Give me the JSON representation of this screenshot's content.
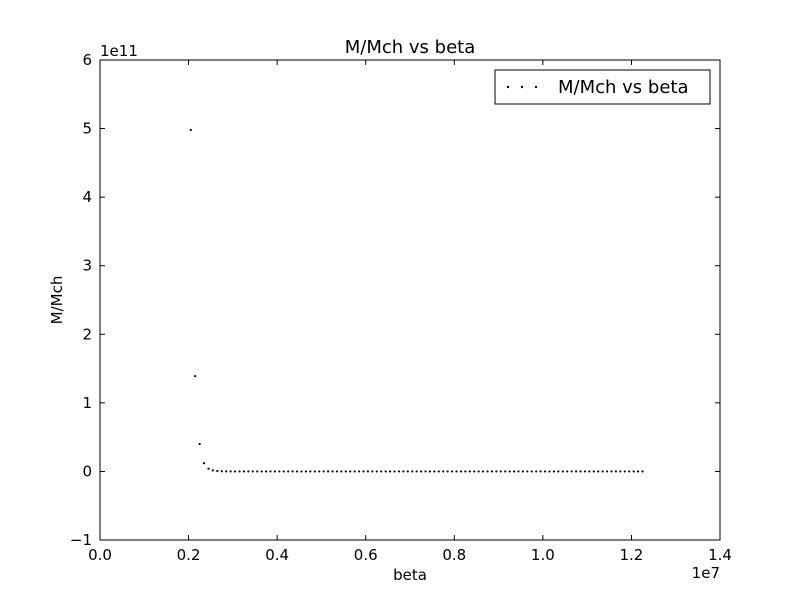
{
  "chart_data": {
    "type": "scatter",
    "title": "M/Mch vs beta",
    "xlabel": "beta",
    "ylabel": "M/Mch",
    "x_scale_label": "1e7",
    "y_scale_label": "1e11",
    "xlim": [
      0.0,
      1.4
    ],
    "ylim": [
      -1,
      6
    ],
    "x_ticks": [
      "0.0",
      "0.2",
      "0.4",
      "0.6",
      "0.8",
      "1.0",
      "1.2",
      "1.4"
    ],
    "y_ticks": [
      "−1",
      "0",
      "1",
      "2",
      "3",
      "4",
      "5",
      "6"
    ],
    "grid": false,
    "legend": {
      "position": "top-right",
      "entries": [
        "M/Mch vs beta"
      ]
    },
    "series": [
      {
        "name": "M/Mch vs beta",
        "color": "#000000",
        "marker": "point",
        "x": [
          0.205,
          0.215,
          0.225,
          0.235,
          0.245,
          0.255,
          0.265,
          0.275,
          0.285,
          0.295,
          0.305,
          0.315,
          0.325,
          0.335,
          0.345,
          0.355,
          0.365,
          0.375,
          0.385,
          0.395,
          0.405,
          0.415,
          0.425,
          0.435,
          0.445,
          0.455,
          0.465,
          0.475,
          0.485,
          0.495,
          0.505,
          0.515,
          0.525,
          0.535,
          0.545,
          0.555,
          0.565,
          0.575,
          0.585,
          0.595,
          0.605,
          0.615,
          0.625,
          0.635,
          0.645,
          0.655,
          0.665,
          0.675,
          0.685,
          0.695,
          0.705,
          0.715,
          0.725,
          0.735,
          0.745,
          0.755,
          0.765,
          0.775,
          0.785,
          0.795,
          0.805,
          0.815,
          0.825,
          0.835,
          0.845,
          0.855,
          0.865,
          0.875,
          0.885,
          0.895,
          0.905,
          0.915,
          0.925,
          0.935,
          0.945,
          0.955,
          0.965,
          0.975,
          0.985,
          0.995,
          1.005,
          1.015,
          1.025,
          1.035,
          1.045,
          1.055,
          1.065,
          1.075,
          1.085,
          1.095,
          1.105,
          1.115,
          1.125,
          1.135,
          1.145,
          1.155,
          1.165,
          1.175,
          1.185,
          1.195,
          1.205,
          1.215,
          1.225
        ],
        "y": [
          4.98,
          1.39,
          0.4,
          0.12,
          0.04,
          0.015,
          0.006,
          0.003,
          0.001,
          0,
          0,
          0,
          0,
          0,
          0,
          0,
          0,
          0,
          0,
          0,
          0,
          0,
          0,
          0,
          0,
          0,
          0,
          0,
          0,
          0,
          0,
          0,
          0,
          0,
          0,
          0,
          0,
          0,
          0,
          0,
          0,
          0,
          0,
          0,
          0,
          0,
          0,
          0,
          0,
          0,
          0,
          0,
          0,
          0,
          0,
          0,
          0,
          0,
          0,
          0,
          0,
          0,
          0,
          0,
          0,
          0,
          0,
          0,
          0,
          0,
          0,
          0,
          0,
          0,
          0,
          0,
          0,
          0,
          0,
          0,
          0,
          0,
          0,
          0,
          0,
          0,
          0,
          0,
          0,
          0,
          0,
          0,
          0,
          0,
          0,
          0,
          0,
          0,
          0,
          0,
          0,
          0,
          0
        ]
      }
    ]
  }
}
